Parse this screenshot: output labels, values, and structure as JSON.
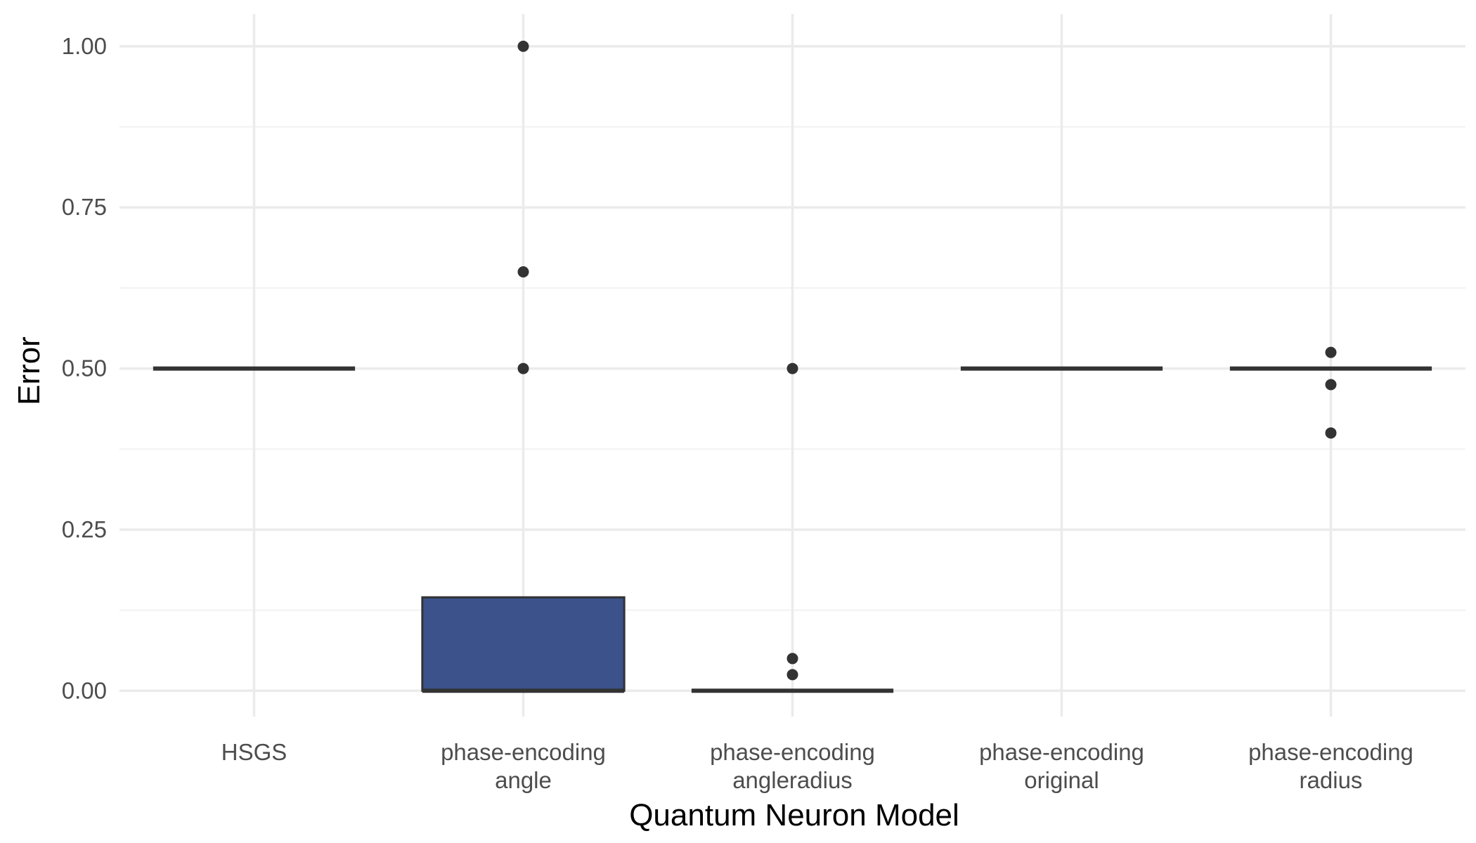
{
  "chart_data": {
    "type": "boxplot",
    "title": "",
    "xlabel": "Quantum Neuron Model",
    "ylabel": "Error",
    "ylim": [
      -0.04,
      1.05
    ],
    "y_ticks": [
      0.0,
      0.25,
      0.5,
      0.75,
      1.0
    ],
    "y_tick_labels": [
      "0.00",
      "0.25",
      "0.50",
      "0.75",
      "1.00"
    ],
    "grid": true,
    "legend": "none",
    "fill_color": "#3b528b",
    "outline_color": "#333333",
    "categories": [
      [
        "HSGS"
      ],
      [
        "phase-encoding",
        "angle"
      ],
      [
        "phase-encoding",
        "angleradius"
      ],
      [
        "phase-encoding",
        "original"
      ],
      [
        "phase-encoding",
        "radius"
      ]
    ],
    "boxes": [
      {
        "q1": 0.5,
        "median": 0.5,
        "q3": 0.5,
        "whisker_low": 0.5,
        "whisker_high": 0.5,
        "outliers": []
      },
      {
        "q1": 0.0,
        "median": 0.0,
        "q3": 0.145,
        "whisker_low": 0.0,
        "whisker_high": 0.145,
        "outliers": [
          1.0,
          0.65,
          0.5
        ]
      },
      {
        "q1": 0.0,
        "median": 0.0,
        "q3": 0.0,
        "whisker_low": 0.0,
        "whisker_high": 0.0,
        "outliers": [
          0.5,
          0.05,
          0.025
        ]
      },
      {
        "q1": 0.5,
        "median": 0.5,
        "q3": 0.5,
        "whisker_low": 0.5,
        "whisker_high": 0.5,
        "outliers": []
      },
      {
        "q1": 0.5,
        "median": 0.5,
        "q3": 0.5,
        "whisker_low": 0.5,
        "whisker_high": 0.5,
        "outliers": [
          0.525,
          0.475,
          0.4
        ]
      }
    ]
  }
}
